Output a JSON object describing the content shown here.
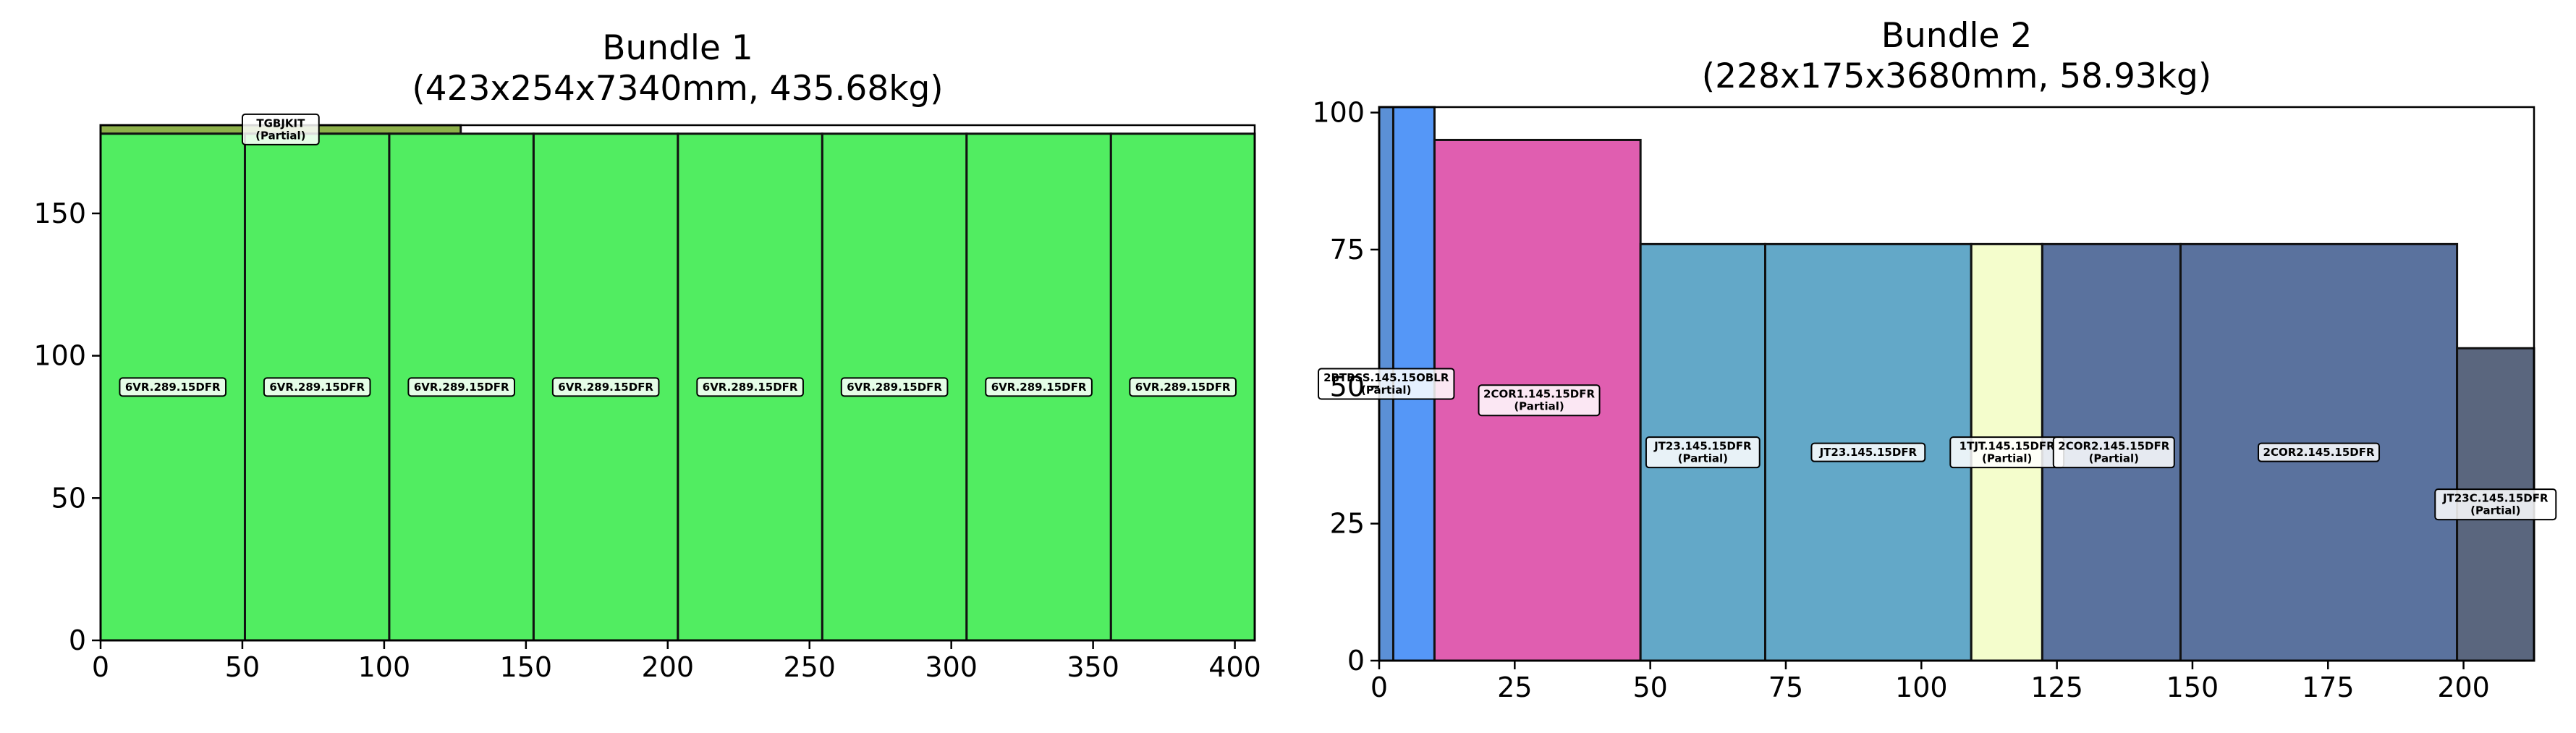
{
  "chart_data": [
    {
      "type": "bar",
      "title": [
        "Bundle 1",
        "(423x254x7340mm, 435.68kg)"
      ],
      "xlim": [
        0,
        407
      ],
      "ylim": [
        0,
        181
      ],
      "xticks": [
        0,
        50,
        100,
        150,
        200,
        250,
        300,
        350,
        400
      ],
      "yticks": [
        0,
        50,
        100,
        150
      ],
      "grid": false,
      "items": [
        {
          "x": 0,
          "w": 127,
          "y": 178,
          "h": 3,
          "color": "#8db04a",
          "label": [
            "TGBJKIT",
            "(Partial)"
          ],
          "lx": 63.5,
          "ly": 179.5
        },
        {
          "x": 0,
          "w": 50.9,
          "y": 0,
          "h": 178,
          "color": "#51ed61",
          "label": [
            "6VR.289.15DFR"
          ]
        },
        {
          "x": 50.9,
          "w": 50.9,
          "y": 0,
          "h": 178,
          "color": "#51ed61",
          "label": [
            "6VR.289.15DFR"
          ]
        },
        {
          "x": 101.8,
          "w": 50.9,
          "y": 0,
          "h": 178,
          "color": "#51ed61",
          "label": [
            "6VR.289.15DFR"
          ]
        },
        {
          "x": 152.7,
          "w": 50.9,
          "y": 0,
          "h": 178,
          "color": "#51ed61",
          "label": [
            "6VR.289.15DFR"
          ]
        },
        {
          "x": 203.6,
          "w": 50.9,
          "y": 0,
          "h": 178,
          "color": "#51ed61",
          "label": [
            "6VR.289.15DFR"
          ]
        },
        {
          "x": 254.5,
          "w": 50.9,
          "y": 0,
          "h": 178,
          "color": "#51ed61",
          "label": [
            "6VR.289.15DFR"
          ]
        },
        {
          "x": 305.4,
          "w": 50.9,
          "y": 0,
          "h": 178,
          "color": "#51ed61",
          "label": [
            "6VR.289.15DFR"
          ]
        },
        {
          "x": 356.3,
          "w": 50.7,
          "y": 0,
          "h": 178,
          "color": "#51ed61",
          "label": [
            "6VR.289.15DFR"
          ]
        }
      ]
    },
    {
      "type": "bar",
      "title": [
        "Bundle 2",
        "(228x175x3680mm, 58.93kg)"
      ],
      "xlim": [
        0,
        213
      ],
      "ylim": [
        0,
        101
      ],
      "xticks": [
        0,
        25,
        50,
        75,
        100,
        125,
        150,
        175,
        200
      ],
      "yticks": [
        0,
        25,
        50,
        75,
        100
      ],
      "grid": false,
      "items": [
        {
          "x": 0,
          "w": 2.6,
          "y": 0,
          "h": 101,
          "color": "#5b90d6",
          "label": [
            "2BTBSS.145.15OBLR",
            "(Partial)"
          ],
          "lx": 1.3,
          "ly": 50.5
        },
        {
          "x": 2.6,
          "w": 7.6,
          "y": 0,
          "h": 101,
          "color": "#5597f7",
          "label": []
        },
        {
          "x": 10.2,
          "w": 38,
          "y": 0,
          "h": 95,
          "color": "#e05eb0",
          "label": [
            "2COR1.145.15DFR",
            "(Partial)"
          ],
          "lx": 29.5,
          "ly": 47.5
        },
        {
          "x": 48.2,
          "w": 23,
          "y": 0,
          "h": 76,
          "color": "#63a8c8",
          "label": [
            "JT23.145.15DFR",
            "(Partial)"
          ],
          "lx": 59.7,
          "ly": 38
        },
        {
          "x": 71.2,
          "w": 38,
          "y": 0,
          "h": 76,
          "color": "#63a8c8",
          "label": [
            "JT23.145.15DFR"
          ]
        },
        {
          "x": 109.2,
          "w": 13.1,
          "y": 0,
          "h": 76,
          "color": "#f4fdcc",
          "label": [
            "1TJT.145.15DFR",
            "(Partial)"
          ],
          "lx": 115.8,
          "ly": 38
        },
        {
          "x": 122.3,
          "w": 25.5,
          "y": 0,
          "h": 76,
          "color": "#5a729e",
          "label": [
            "2COR2.145.15DFR",
            "(Partial)"
          ],
          "lx": 135.5,
          "ly": 38
        },
        {
          "x": 147.8,
          "w": 51,
          "y": 0,
          "h": 76,
          "color": "#5a729e",
          "label": [
            "2COR2.145.15DFR"
          ]
        },
        {
          "x": 198.8,
          "w": 14.2,
          "y": 0,
          "h": 57,
          "color": "#5a667e",
          "label": [
            "JT23C.145.15DFR",
            "(Partial)"
          ],
          "lx": 205.9,
          "ly": 28.5
        }
      ]
    }
  ]
}
